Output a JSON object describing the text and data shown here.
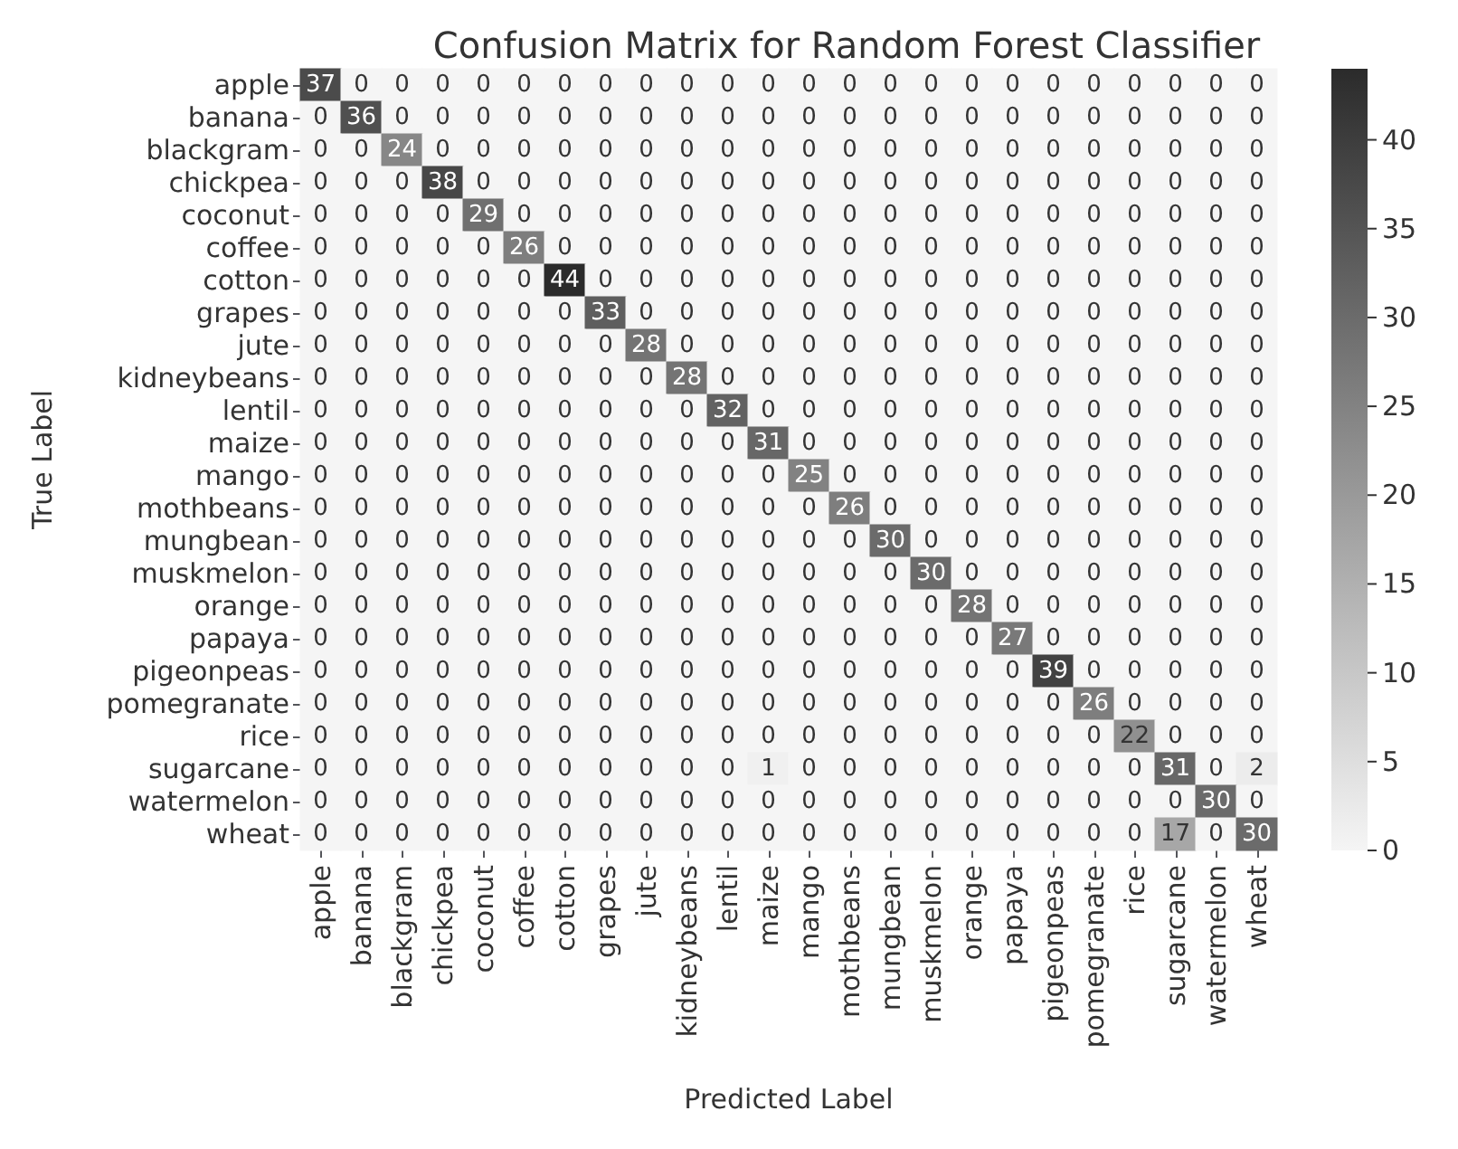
{
  "chart_data": {
    "type": "heatmap",
    "title": "Confusion Matrix for Random Forest Classifier",
    "xlabel": "Predicted Label",
    "ylabel": "True Label",
    "categories": [
      "apple",
      "banana",
      "blackgram",
      "chickpea",
      "coconut",
      "coffee",
      "cotton",
      "grapes",
      "jute",
      "kidneybeans",
      "lentil",
      "maize",
      "mango",
      "mothbeans",
      "mungbean",
      "muskmelon",
      "orange",
      "papaya",
      "pigeonpeas",
      "pomegranate",
      "rice",
      "sugarcane",
      "watermelon",
      "wheat"
    ],
    "y_categories": [
      "apple",
      "banana",
      "blackgram",
      "chickpea",
      "coconut",
      "coffee",
      "cotton",
      "grapes",
      "jute",
      "kidneybeans",
      "lentil",
      "maize",
      "mango",
      "mothbeans",
      "mungbean",
      "muskmelon",
      "orange",
      "papaya",
      "pigeonpeas",
      "pomegranate",
      "rice",
      "sugarcane",
      "watermelon",
      "wheat"
    ],
    "cells": [
      [
        37,
        0,
        0,
        0,
        0,
        0,
        0,
        0,
        0,
        0,
        0,
        0,
        0,
        0,
        0,
        0,
        0,
        0,
        0,
        0,
        0,
        0,
        0,
        0
      ],
      [
        0,
        36,
        0,
        0,
        0,
        0,
        0,
        0,
        0,
        0,
        0,
        0,
        0,
        0,
        0,
        0,
        0,
        0,
        0,
        0,
        0,
        0,
        0,
        0
      ],
      [
        0,
        0,
        24,
        0,
        0,
        0,
        0,
        0,
        0,
        0,
        0,
        0,
        0,
        0,
        0,
        0,
        0,
        0,
        0,
        0,
        0,
        0,
        0,
        0
      ],
      [
        0,
        0,
        0,
        38,
        0,
        0,
        0,
        0,
        0,
        0,
        0,
        0,
        0,
        0,
        0,
        0,
        0,
        0,
        0,
        0,
        0,
        0,
        0,
        0
      ],
      [
        0,
        0,
        0,
        0,
        29,
        0,
        0,
        0,
        0,
        0,
        0,
        0,
        0,
        0,
        0,
        0,
        0,
        0,
        0,
        0,
        0,
        0,
        0,
        0
      ],
      [
        0,
        0,
        0,
        0,
        0,
        26,
        0,
        0,
        0,
        0,
        0,
        0,
        0,
        0,
        0,
        0,
        0,
        0,
        0,
        0,
        0,
        0,
        0,
        0
      ],
      [
        0,
        0,
        0,
        0,
        0,
        0,
        44,
        0,
        0,
        0,
        0,
        0,
        0,
        0,
        0,
        0,
        0,
        0,
        0,
        0,
        0,
        0,
        0,
        0
      ],
      [
        0,
        0,
        0,
        0,
        0,
        0,
        0,
        33,
        0,
        0,
        0,
        0,
        0,
        0,
        0,
        0,
        0,
        0,
        0,
        0,
        0,
        0,
        0,
        0
      ],
      [
        0,
        0,
        0,
        0,
        0,
        0,
        0,
        0,
        28,
        0,
        0,
        0,
        0,
        0,
        0,
        0,
        0,
        0,
        0,
        0,
        0,
        0,
        0,
        0
      ],
      [
        0,
        0,
        0,
        0,
        0,
        0,
        0,
        0,
        0,
        28,
        0,
        0,
        0,
        0,
        0,
        0,
        0,
        0,
        0,
        0,
        0,
        0,
        0,
        0
      ],
      [
        0,
        0,
        0,
        0,
        0,
        0,
        0,
        0,
        0,
        0,
        32,
        0,
        0,
        0,
        0,
        0,
        0,
        0,
        0,
        0,
        0,
        0,
        0,
        0
      ],
      [
        0,
        0,
        0,
        0,
        0,
        0,
        0,
        0,
        0,
        0,
        0,
        31,
        0,
        0,
        0,
        0,
        0,
        0,
        0,
        0,
        0,
        0,
        0,
        0
      ],
      [
        0,
        0,
        0,
        0,
        0,
        0,
        0,
        0,
        0,
        0,
        0,
        0,
        25,
        0,
        0,
        0,
        0,
        0,
        0,
        0,
        0,
        0,
        0,
        0
      ],
      [
        0,
        0,
        0,
        0,
        0,
        0,
        0,
        0,
        0,
        0,
        0,
        0,
        0,
        26,
        0,
        0,
        0,
        0,
        0,
        0,
        0,
        0,
        0,
        0
      ],
      [
        0,
        0,
        0,
        0,
        0,
        0,
        0,
        0,
        0,
        0,
        0,
        0,
        0,
        0,
        30,
        0,
        0,
        0,
        0,
        0,
        0,
        0,
        0,
        0
      ],
      [
        0,
        0,
        0,
        0,
        0,
        0,
        0,
        0,
        0,
        0,
        0,
        0,
        0,
        0,
        0,
        30,
        0,
        0,
        0,
        0,
        0,
        0,
        0,
        0
      ],
      [
        0,
        0,
        0,
        0,
        0,
        0,
        0,
        0,
        0,
        0,
        0,
        0,
        0,
        0,
        0,
        0,
        28,
        0,
        0,
        0,
        0,
        0,
        0,
        0
      ],
      [
        0,
        0,
        0,
        0,
        0,
        0,
        0,
        0,
        0,
        0,
        0,
        0,
        0,
        0,
        0,
        0,
        0,
        27,
        0,
        0,
        0,
        0,
        0,
        0
      ],
      [
        0,
        0,
        0,
        0,
        0,
        0,
        0,
        0,
        0,
        0,
        0,
        0,
        0,
        0,
        0,
        0,
        0,
        0,
        39,
        0,
        0,
        0,
        0,
        0
      ],
      [
        0,
        0,
        0,
        0,
        0,
        0,
        0,
        0,
        0,
        0,
        0,
        0,
        0,
        0,
        0,
        0,
        0,
        0,
        0,
        26,
        0,
        0,
        0,
        0
      ],
      [
        0,
        0,
        0,
        0,
        0,
        0,
        0,
        0,
        0,
        0,
        0,
        0,
        0,
        0,
        0,
        0,
        0,
        0,
        0,
        0,
        22,
        0,
        0,
        0
      ],
      [
        0,
        0,
        0,
        0,
        0,
        0,
        0,
        0,
        0,
        0,
        0,
        1,
        0,
        0,
        0,
        0,
        0,
        0,
        0,
        0,
        0,
        31,
        0,
        2
      ],
      [
        0,
        0,
        0,
        0,
        0,
        0,
        0,
        0,
        0,
        0,
        0,
        0,
        0,
        0,
        0,
        0,
        0,
        0,
        0,
        0,
        0,
        0,
        30,
        0
      ],
      [
        0,
        0,
        0,
        0,
        0,
        0,
        0,
        0,
        0,
        0,
        0,
        0,
        0,
        0,
        0,
        0,
        0,
        0,
        0,
        0,
        0,
        17,
        0,
        30
      ]
    ],
    "data_labels": true,
    "clim": [
      0,
      44
    ],
    "cticks": [
      0,
      5,
      10,
      15,
      20,
      25,
      30,
      35,
      40
    ]
  }
}
